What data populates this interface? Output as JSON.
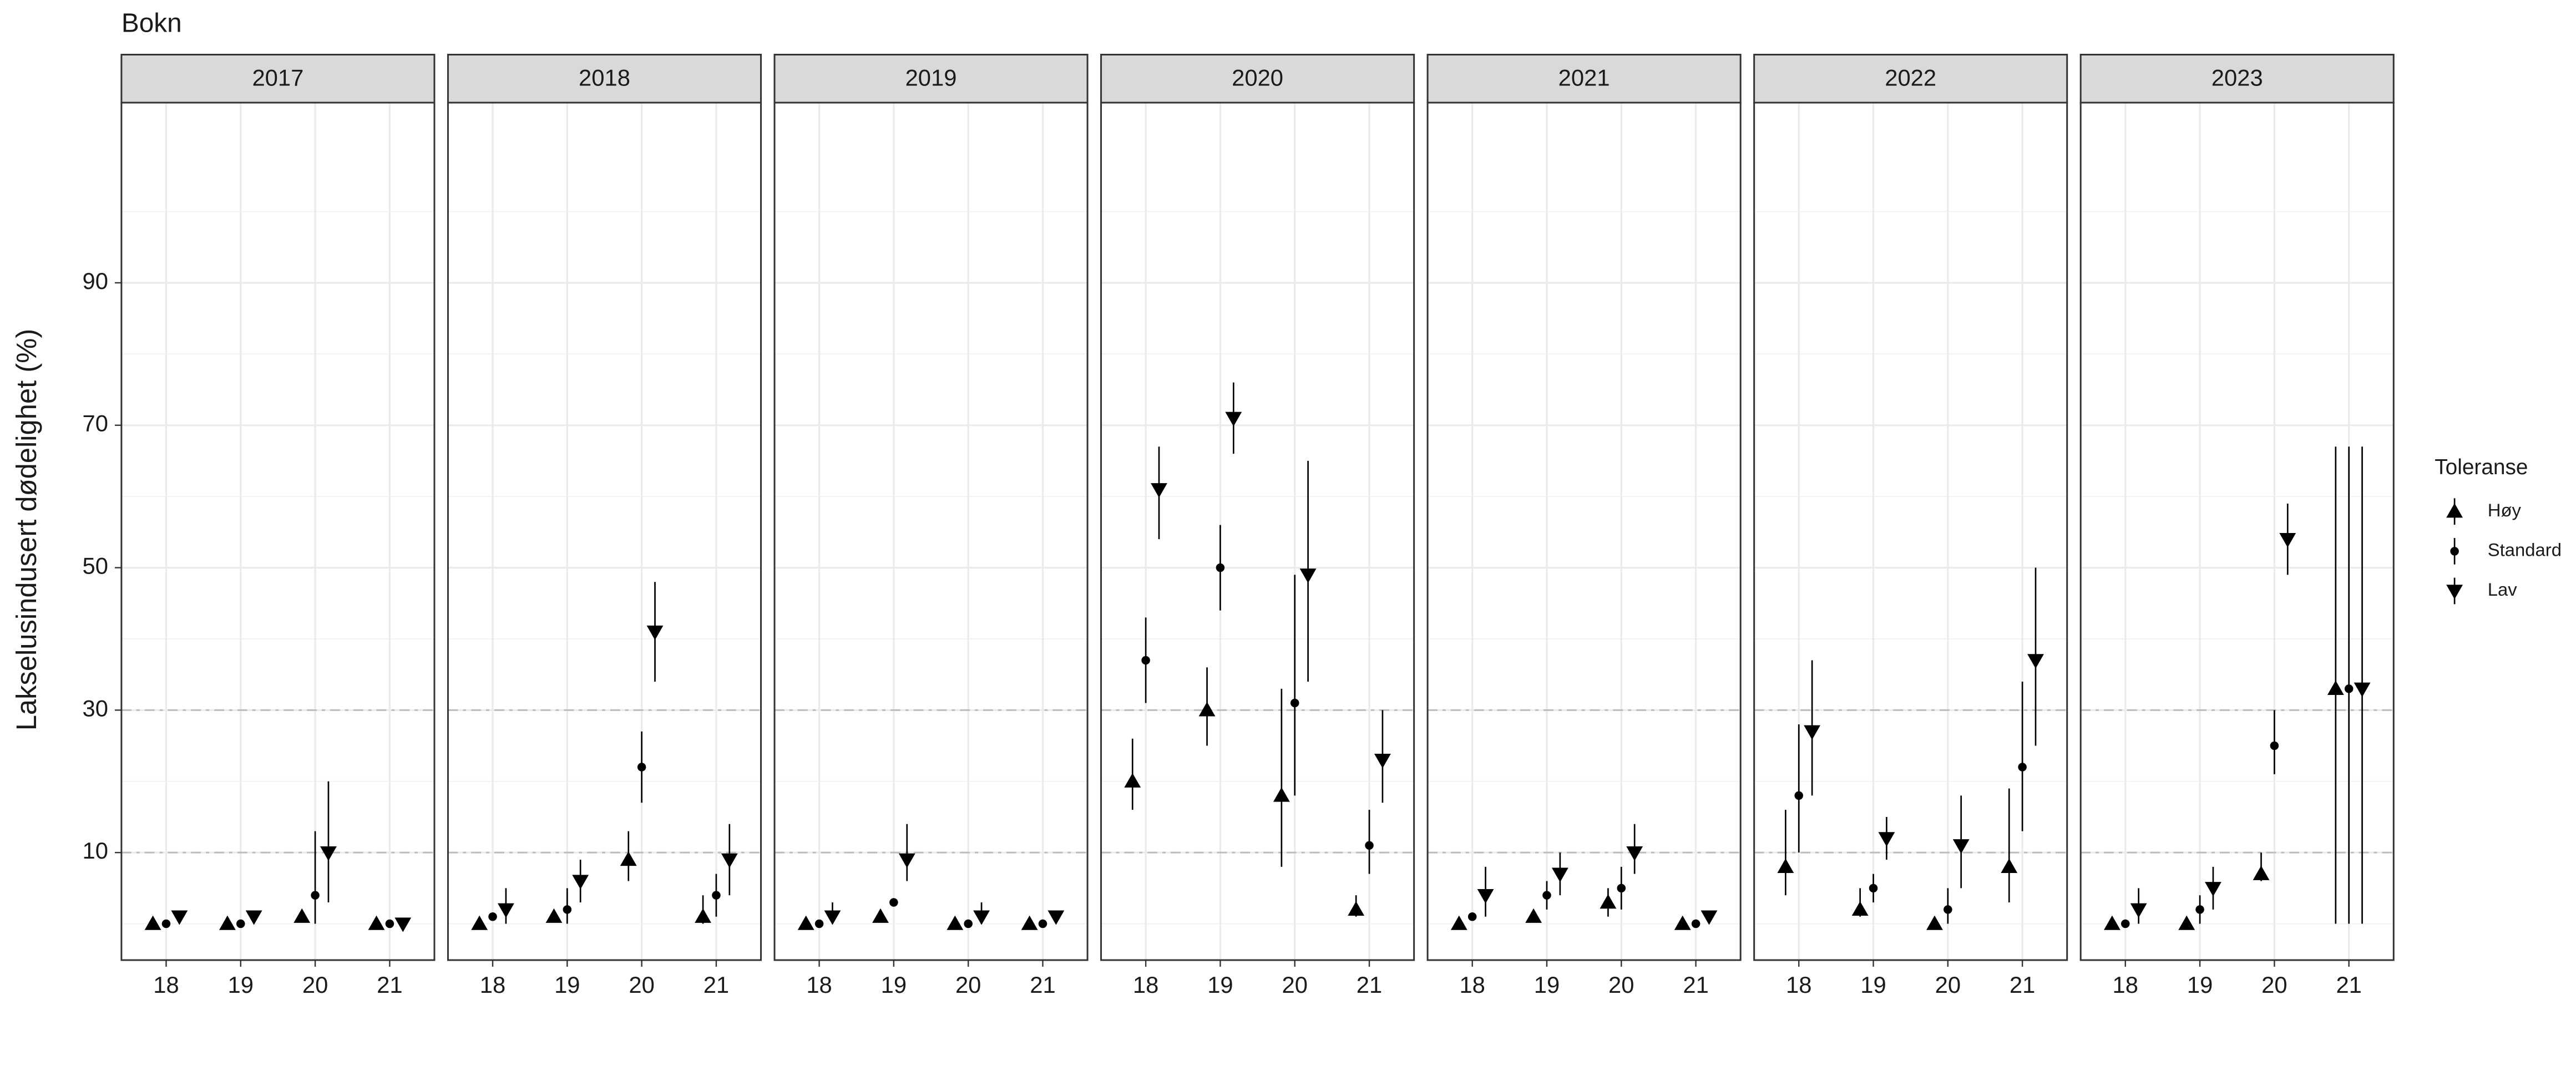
{
  "chart_data": {
    "type": "pointrange",
    "title": "Bokn",
    "y_label": "Lakselusindusert dødelighet (%)",
    "legend_title": "Toleranse",
    "ylim": [
      -5.1,
      115.3
    ],
    "yticks": [
      10,
      30,
      50,
      70,
      90
    ],
    "minor_yticks": [
      0,
      20,
      40,
      60,
      80,
      100
    ],
    "reference_lines": [
      10,
      30
    ],
    "grid": true,
    "series": [
      {
        "name": "Høy",
        "marker": "triangle-up",
        "color": "#000000"
      },
      {
        "name": "Standard",
        "marker": "circle",
        "color": "#000000"
      },
      {
        "name": "Lav",
        "marker": "triangle-down",
        "color": "#000000"
      }
    ],
    "facets": [
      {
        "label": "2017",
        "categories": [
          "18",
          "19",
          "20",
          "21"
        ],
        "values": [
          [
            0,
            0,
            1,
            0
          ],
          [
            0,
            0,
            4,
            0
          ],
          [
            1,
            1,
            10,
            0
          ]
        ],
        "lower": [
          [
            null,
            null,
            null,
            null
          ],
          [
            null,
            null,
            0,
            null
          ],
          [
            null,
            null,
            3,
            null
          ]
        ],
        "upper": [
          [
            null,
            null,
            null,
            null
          ],
          [
            null,
            null,
            13,
            null
          ],
          [
            null,
            null,
            20,
            null
          ]
        ]
      },
      {
        "label": "2018",
        "categories": [
          "18",
          "19",
          "20",
          "21"
        ],
        "values": [
          [
            0,
            1,
            9,
            1
          ],
          [
            1,
            2,
            22,
            4
          ],
          [
            2,
            6,
            41,
            9
          ]
        ],
        "lower": [
          [
            null,
            null,
            6,
            0
          ],
          [
            null,
            0,
            17,
            1
          ],
          [
            0,
            3,
            34,
            4
          ]
        ],
        "upper": [
          [
            null,
            null,
            13,
            4
          ],
          [
            null,
            5,
            27,
            7
          ],
          [
            5,
            9,
            48,
            14
          ]
        ]
      },
      {
        "label": "2019",
        "categories": [
          "18",
          "19",
          "20",
          "21"
        ],
        "values": [
          [
            0,
            1,
            0,
            0
          ],
          [
            0,
            3,
            0,
            0
          ],
          [
            1,
            9,
            1,
            1
          ]
        ],
        "lower": [
          [
            null,
            null,
            null,
            null
          ],
          [
            null,
            null,
            null,
            null
          ],
          [
            0,
            6,
            0,
            null
          ]
        ],
        "upper": [
          [
            null,
            null,
            null,
            null
          ],
          [
            null,
            null,
            null,
            null
          ],
          [
            3,
            14,
            3,
            null
          ]
        ]
      },
      {
        "label": "2020",
        "categories": [
          "18",
          "19",
          "20",
          "21"
        ],
        "values": [
          [
            20,
            30,
            18,
            2
          ],
          [
            37,
            50,
            31,
            11
          ],
          [
            61,
            71,
            49,
            23
          ]
        ],
        "lower": [
          [
            16,
            25,
            8,
            1
          ],
          [
            31,
            44,
            18,
            7
          ],
          [
            54,
            66,
            34,
            17
          ]
        ],
        "upper": [
          [
            26,
            36,
            33,
            4
          ],
          [
            43,
            56,
            49,
            16
          ],
          [
            67,
            76,
            65,
            30
          ]
        ]
      },
      {
        "label": "2021",
        "categories": [
          "18",
          "19",
          "20",
          "21"
        ],
        "values": [
          [
            0,
            1,
            3,
            0
          ],
          [
            1,
            4,
            5,
            0
          ],
          [
            4,
            7,
            10,
            1
          ]
        ],
        "lower": [
          [
            null,
            null,
            1,
            null
          ],
          [
            null,
            2,
            2,
            null
          ],
          [
            1,
            4,
            7,
            null
          ]
        ],
        "upper": [
          [
            null,
            null,
            5,
            null
          ],
          [
            null,
            6,
            8,
            null
          ],
          [
            8,
            10,
            14,
            null
          ]
        ]
      },
      {
        "label": "2022",
        "categories": [
          "18",
          "19",
          "20",
          "21"
        ],
        "values": [
          [
            8,
            2,
            0,
            8
          ],
          [
            18,
            5,
            2,
            22
          ],
          [
            27,
            12,
            11,
            37
          ]
        ],
        "lower": [
          [
            4,
            1,
            null,
            3
          ],
          [
            10,
            3,
            0,
            13
          ],
          [
            18,
            9,
            5,
            25
          ]
        ],
        "upper": [
          [
            16,
            5,
            null,
            19
          ],
          [
            28,
            7,
            5,
            34
          ],
          [
            37,
            15,
            18,
            50
          ]
        ]
      },
      {
        "label": "2023",
        "categories": [
          "18",
          "19",
          "20",
          "21"
        ],
        "values": [
          [
            0,
            0,
            7,
            33
          ],
          [
            0,
            2,
            25,
            33
          ],
          [
            2,
            5,
            54,
            33
          ]
        ],
        "lower": [
          [
            null,
            null,
            6,
            0
          ],
          [
            null,
            0,
            21,
            0
          ],
          [
            0,
            2,
            49,
            0
          ]
        ],
        "upper": [
          [
            null,
            null,
            10,
            67
          ],
          [
            null,
            4,
            30,
            67
          ],
          [
            5,
            8,
            59,
            67
          ]
        ]
      }
    ]
  }
}
